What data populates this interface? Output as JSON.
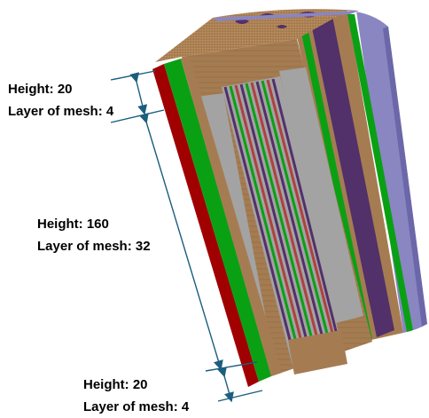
{
  "annotations": [
    {
      "height_label": "Height: 20",
      "mesh_label": "Layer of mesh: 4"
    },
    {
      "height_label": "Height: 160",
      "mesh_label": "Layer of mesh: 32"
    },
    {
      "height_label": "Height: 20",
      "mesh_label": "Layer of mesh: 4"
    }
  ],
  "colors": {
    "outer_cladding": "#8a86c2",
    "outer_cladding_dark": "#6c67a8",
    "red_layer": "#a00000",
    "green_layer": "#0aa014",
    "bronze_layer": "#a57c52",
    "gray_core": "#a3a3a3",
    "purple_layer": "#52306a",
    "annotation_arrow": "#1b5e7e"
  }
}
